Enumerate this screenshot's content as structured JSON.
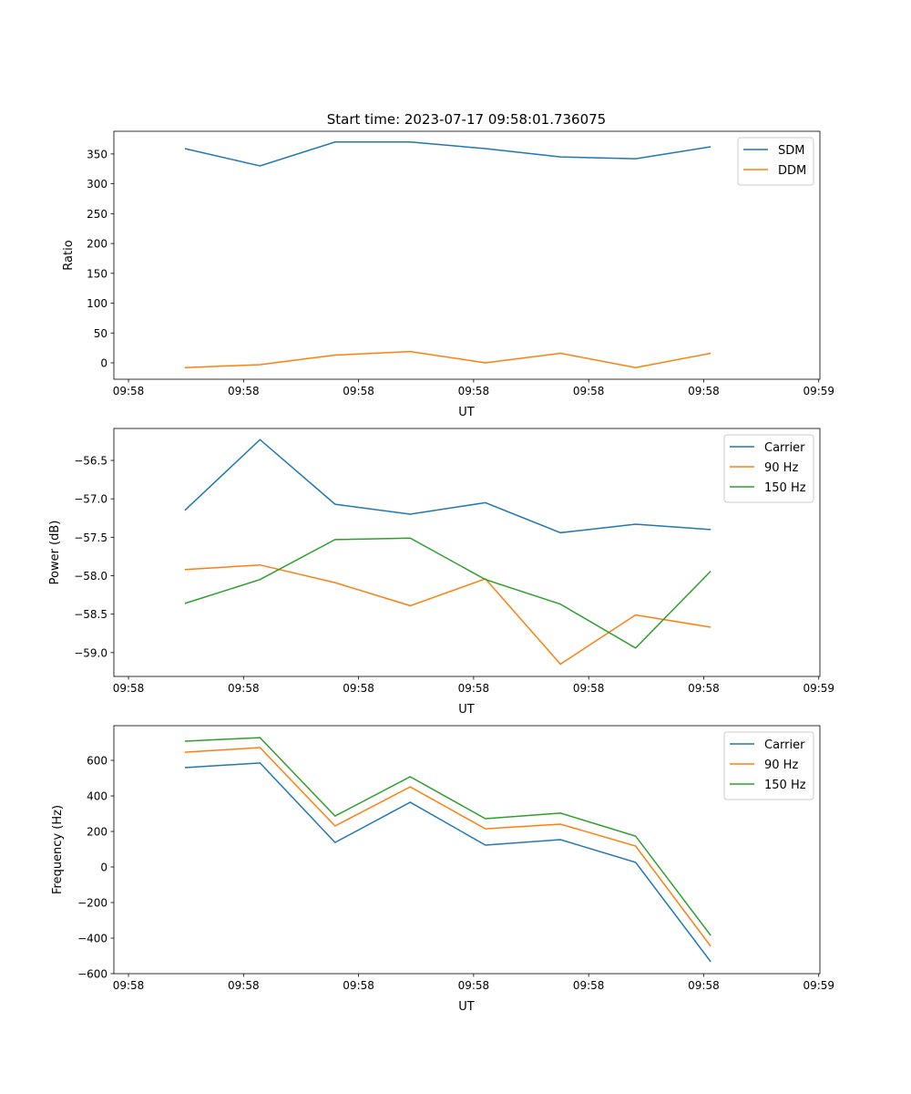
{
  "chart_data": [
    {
      "type": "line",
      "title": "Start time: 2023-07-17 09:58:01.736075",
      "xlabel": "UT",
      "ylabel": "Ratio",
      "x_unit": "seconds after 09:58:00",
      "x": [
        4.9,
        11.43,
        17.96,
        24.49,
        31.02,
        37.55,
        44.08,
        50.61
      ],
      "xlim": [
        -1.27,
        60.1
      ],
      "xticks": [
        0,
        10,
        20,
        30,
        40,
        50,
        60
      ],
      "xtick_labels": [
        "09:58",
        "09:58",
        "09:58",
        "09:58",
        "09:58",
        "09:58",
        "09:59"
      ],
      "ylim": [
        -27.5,
        388
      ],
      "yticks": [
        0,
        50,
        100,
        150,
        200,
        250,
        300,
        350
      ],
      "ytick_labels": [
        "0",
        "50",
        "100",
        "150",
        "200",
        "250",
        "300",
        "350"
      ],
      "legend_position": "top-right",
      "grid": false,
      "series": [
        {
          "name": "SDM",
          "color": "#1f77b4",
          "values": [
            359,
            330,
            370,
            370,
            359,
            345,
            342,
            362
          ]
        },
        {
          "name": "DDM",
          "color": "#ff7f0e",
          "values": [
            -8,
            -3,
            13,
            19,
            0,
            16,
            -8,
            16
          ]
        }
      ]
    },
    {
      "type": "line",
      "xlabel": "UT",
      "ylabel": "Power (dB)",
      "x_unit": "seconds after 09:58:00",
      "x": [
        4.9,
        11.43,
        17.96,
        24.49,
        31.02,
        37.55,
        44.08,
        50.61
      ],
      "xlim": [
        -1.27,
        60.1
      ],
      "xticks": [
        0,
        10,
        20,
        30,
        40,
        50,
        60
      ],
      "xtick_labels": [
        "09:58",
        "09:58",
        "09:58",
        "09:58",
        "09:58",
        "09:58",
        "09:59"
      ],
      "ylim": [
        -59.31,
        -56.085
      ],
      "yticks": [
        -59.0,
        -58.5,
        -58.0,
        -57.5,
        -57.0,
        -56.5
      ],
      "ytick_labels": [
        "−59.0",
        "−58.5",
        "−58.0",
        "−57.5",
        "−57.0",
        "−56.5"
      ],
      "legend_position": "top-right",
      "grid": false,
      "series": [
        {
          "name": "Carrier",
          "color": "#1f77b4",
          "values": [
            -57.15,
            -56.23,
            -57.07,
            -57.2,
            -57.05,
            -57.44,
            -57.33,
            -57.4
          ]
        },
        {
          "name": "90 Hz",
          "color": "#ff7f0e",
          "values": [
            -57.92,
            -57.86,
            -58.09,
            -58.39,
            -58.04,
            -59.15,
            -58.51,
            -58.67
          ]
        },
        {
          "name": "150 Hz",
          "color": "#2ca02c",
          "values": [
            -58.36,
            -58.05,
            -57.53,
            -57.51,
            -58.05,
            -58.37,
            -58.94,
            -57.94
          ]
        }
      ]
    },
    {
      "type": "line",
      "xlabel": "UT",
      "ylabel": "Frequency (Hz)",
      "x_unit": "seconds after 09:58:00",
      "x": [
        4.9,
        11.43,
        17.96,
        24.49,
        31.02,
        37.55,
        44.08,
        50.61
      ],
      "xlim": [
        -1.27,
        60.1
      ],
      "xticks": [
        0,
        10,
        20,
        30,
        40,
        50,
        60
      ],
      "xtick_labels": [
        "09:58",
        "09:58",
        "09:58",
        "09:58",
        "09:58",
        "09:58",
        "09:59"
      ],
      "ylim": [
        -600,
        795
      ],
      "yticks": [
        -600,
        -400,
        -200,
        0,
        200,
        400,
        600
      ],
      "ytick_labels": [
        "−600",
        "−400",
        "−200",
        "0",
        "200",
        "400",
        "600"
      ],
      "legend_position": "top-right",
      "grid": false,
      "series": [
        {
          "name": "Carrier",
          "color": "#1f77b4",
          "values": [
            559,
            585,
            138,
            364,
            123,
            154,
            26,
            -533
          ]
        },
        {
          "name": "90 Hz",
          "color": "#ff7f0e",
          "values": [
            646,
            672,
            231,
            451,
            215,
            241,
            118,
            -446
          ]
        },
        {
          "name": "150 Hz",
          "color": "#2ca02c",
          "values": [
            708,
            728,
            287,
            508,
            272,
            303,
            174,
            -385
          ]
        }
      ]
    }
  ]
}
